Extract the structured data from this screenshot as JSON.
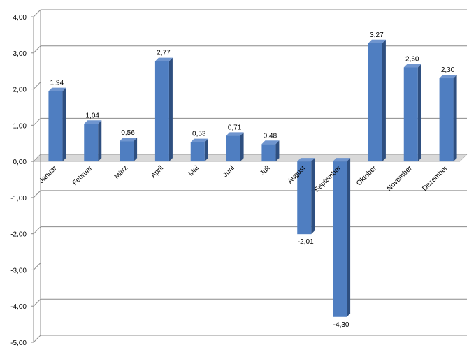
{
  "chart_data": {
    "type": "bar",
    "categories": [
      "Januar",
      "Februar",
      "März",
      "April",
      "Mai",
      "Juni",
      "Juli",
      "August",
      "September",
      "Oktober",
      "November",
      "Dezember"
    ],
    "values": [
      1.94,
      1.04,
      0.56,
      2.77,
      0.53,
      0.71,
      0.48,
      -2.01,
      -4.3,
      3.27,
      2.6,
      2.3
    ],
    "value_labels": [
      "1,94",
      "1,04",
      "0,56",
      "2,77",
      "0,53",
      "0,71",
      "0,48",
      "-2,01",
      "-4,30",
      "3,27",
      "2,60",
      "2,30"
    ],
    "y_ticks": [
      4,
      3,
      2,
      1,
      0,
      -1,
      -2,
      -3,
      -4,
      -5
    ],
    "y_tick_labels": [
      "4,00",
      "3,00",
      "2,00",
      "1,00",
      "0,00",
      "-1,00",
      "-2,00",
      "-3,00",
      "-4,00",
      "-5,00"
    ],
    "ylim": [
      -5,
      4
    ],
    "title": "",
    "xlabel": "",
    "ylabel": "",
    "grid": true,
    "legend": "none",
    "colors": {
      "bar_front": "#4f7ec1",
      "bar_side": "#2e4f80",
      "bar_top": "#6f95cf",
      "grid": "#8c8c8c",
      "floor": "#d9d9d9"
    }
  }
}
